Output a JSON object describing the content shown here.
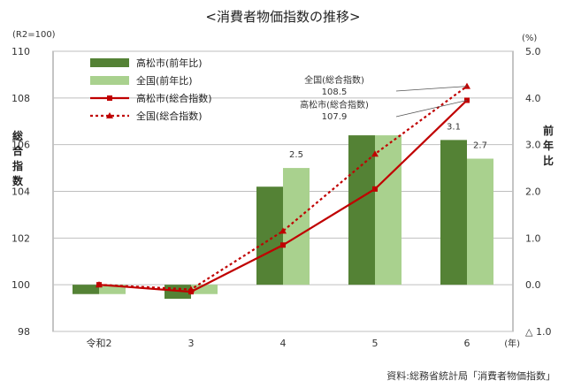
{
  "chart_data": {
    "type": "bar+line",
    "title": "<消費者物価指数の推移>",
    "left_unit": "(R2=100)",
    "right_unit": "(%)",
    "ylabel_left": [
      "総",
      "合",
      "指",
      "数"
    ],
    "ylabel_right": [
      "前",
      "年",
      "比"
    ],
    "x_unit": "(年)",
    "categories": [
      "令和2",
      "3",
      "4",
      "5",
      "6"
    ],
    "left_axis": {
      "min": 98,
      "max": 110,
      "ticks": [
        "98",
        "100",
        "102",
        "104",
        "106",
        "108",
        "110"
      ]
    },
    "right_axis": {
      "min": -1.0,
      "max": 5.0,
      "ticks": [
        {
          "v": -1.0,
          "label": "△ 1.0"
        },
        {
          "v": 0.0,
          "label": "0.0"
        },
        {
          "v": 1.0,
          "label": "1.0"
        },
        {
          "v": 2.0,
          "label": "2.0"
        },
        {
          "v": 3.0,
          "label": "3.0"
        },
        {
          "v": 4.0,
          "label": "4.0"
        },
        {
          "v": 5.0,
          "label": "5.0"
        }
      ]
    },
    "bar_series": [
      {
        "name": "高松市(前年比)",
        "color": "#548235",
        "values": [
          -0.2,
          -0.3,
          2.1,
          3.2,
          3.1
        ]
      },
      {
        "name": "全国(前年比)",
        "color": "#a9d18e",
        "values": [
          -0.2,
          -0.2,
          2.5,
          3.2,
          2.7
        ]
      }
    ],
    "line_series": [
      {
        "name": "高松市(総合指数)",
        "color": "#c00000",
        "style": "solid",
        "marker": "square",
        "values": [
          100.0,
          99.7,
          101.7,
          104.1,
          107.9
        ]
      },
      {
        "name": "全国(総合指数)",
        "color": "#c00000",
        "style": "dotted",
        "marker": "triangle",
        "values": [
          100.0,
          99.8,
          102.3,
          105.6,
          108.5
        ]
      }
    ],
    "bar_labels": [
      {
        "series": 1,
        "index": 2,
        "text": "2.5"
      },
      {
        "series": 0,
        "index": 4,
        "text": "3.1"
      },
      {
        "series": 1,
        "index": 4,
        "text": "2.7"
      }
    ],
    "callouts": [
      {
        "series": 1,
        "index": 4,
        "line1": "全国(総合指数)",
        "line2": "108.5"
      },
      {
        "series": 0,
        "index": 4,
        "line1": "高松市(総合指数)",
        "line2": "107.9"
      }
    ],
    "grid": true
  },
  "source": "資料:総務省統計局「消費者物価指数」"
}
